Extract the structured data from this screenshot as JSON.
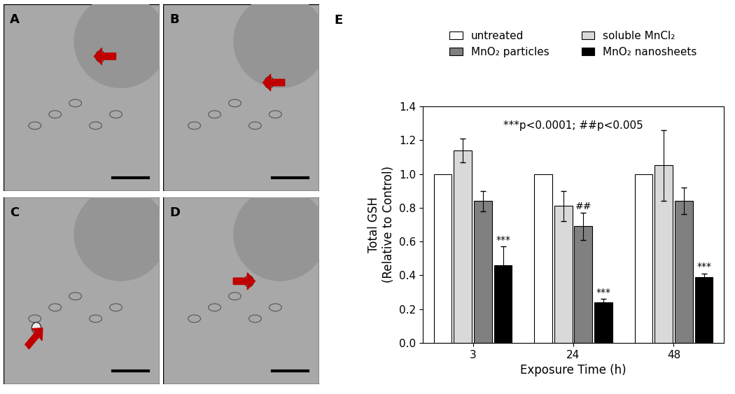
{
  "panel_labels": [
    "A",
    "B",
    "C",
    "D",
    "E"
  ],
  "chart_data": {
    "type": "bar",
    "categories": [
      "3",
      "24",
      "48"
    ],
    "x_label": "Exposure Time (h)",
    "y_label": "Total GSH\n(Relative to Control)",
    "annotation": "***p<0.0001; ##p<0.005",
    "ylim": [
      0,
      1.4
    ],
    "yticks": [
      {
        "value": 0,
        "label": "0.0"
      },
      {
        "value": 0.2,
        "label": "0.2"
      },
      {
        "value": 0.4,
        "label": "0.4"
      },
      {
        "value": 0.6,
        "label": "0.6"
      },
      {
        "value": 0.8,
        "label": "0.8"
      },
      {
        "value": 1.0,
        "label": "1.0"
      },
      {
        "value": 1.2,
        "label": "1.2"
      },
      {
        "value": 1.4,
        "label": "1.4"
      }
    ],
    "legend": "upper center",
    "series": [
      {
        "name": "untreated",
        "color": "#ffffff",
        "values": [
          1.0,
          1.0,
          1.0
        ]
      },
      {
        "name": "soluble MnCl₂",
        "color": "#d9d9d9",
        "values": [
          1.14,
          0.81,
          1.05
        ],
        "errors": [
          0.07,
          0.09,
          0.21
        ]
      },
      {
        "name": "MnO₂ particles",
        "color": "#808080",
        "values": [
          0.84,
          0.69,
          0.84
        ],
        "errors": [
          0.06,
          0.08,
          0.08
        ],
        "marks": [
          null,
          "##",
          null
        ]
      },
      {
        "name": "MnO₂ nanosheets",
        "color": "#000000",
        "values": [
          0.46,
          0.24,
          0.39
        ],
        "errors": [
          0.11,
          0.02,
          0.02
        ],
        "marks": [
          "***",
          "***",
          "***"
        ]
      }
    ]
  }
}
